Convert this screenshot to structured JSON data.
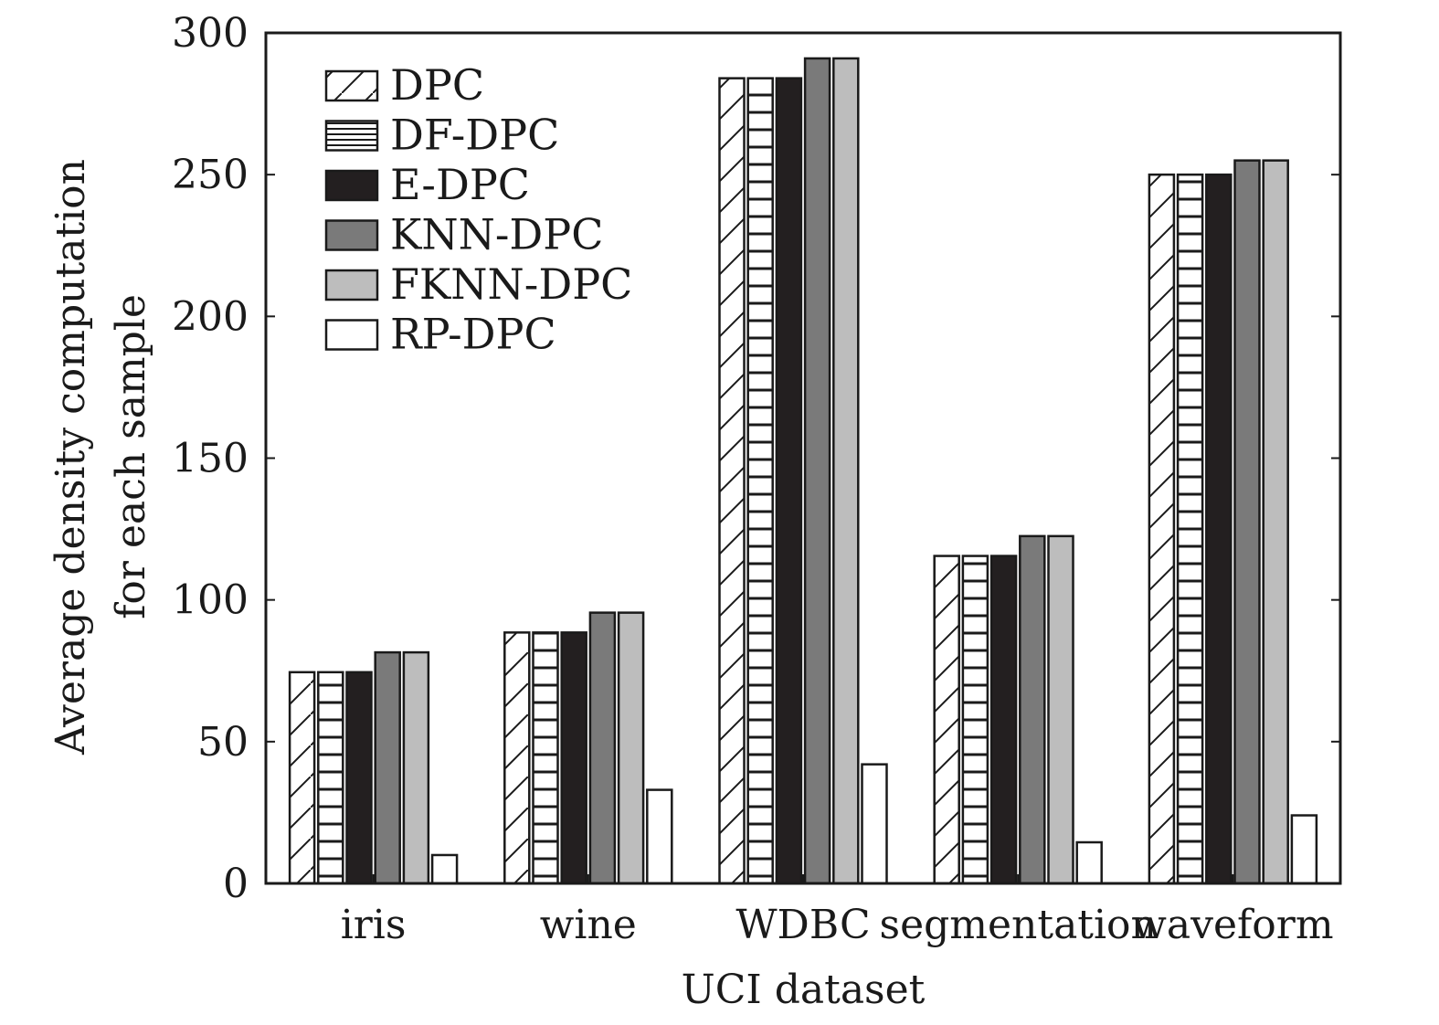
{
  "chart_data": {
    "type": "bar",
    "title": "",
    "xlabel": "UCI dataset",
    "ylabel": [
      "Average density computation",
      "for each sample"
    ],
    "ylim": [
      0,
      300
    ],
    "yticks": [
      0,
      50,
      100,
      150,
      200,
      250,
      300
    ],
    "grid": false,
    "legend_position": "top-left",
    "categories": [
      "iris",
      "wine",
      "WDBC",
      "segmentation",
      "waveform"
    ],
    "series": [
      {
        "name": "DPC",
        "values": [
          74.5,
          88.5,
          284,
          115.5,
          250
        ],
        "fill": "#ffffff",
        "pattern": "diagonal-hatch"
      },
      {
        "name": "DF-DPC",
        "values": [
          74.5,
          88.5,
          284,
          115.5,
          250
        ],
        "fill": "#ffffff",
        "pattern": "horizontal-lines"
      },
      {
        "name": "E-DPC",
        "values": [
          74.5,
          88.5,
          284,
          115.5,
          250
        ],
        "fill": "#231f20",
        "pattern": "solid"
      },
      {
        "name": "KNN-DPC",
        "values": [
          81.5,
          95.5,
          291,
          122.5,
          255
        ],
        "fill": "#7a7a7a",
        "pattern": "solid"
      },
      {
        "name": "FKNN-DPC",
        "values": [
          81.5,
          95.5,
          291,
          122.5,
          255
        ],
        "fill": "#bdbdbd",
        "pattern": "solid"
      },
      {
        "name": "RP-DPC",
        "values": [
          10,
          33,
          42,
          14.5,
          24
        ],
        "fill": "#ffffff",
        "pattern": "solid"
      }
    ]
  }
}
